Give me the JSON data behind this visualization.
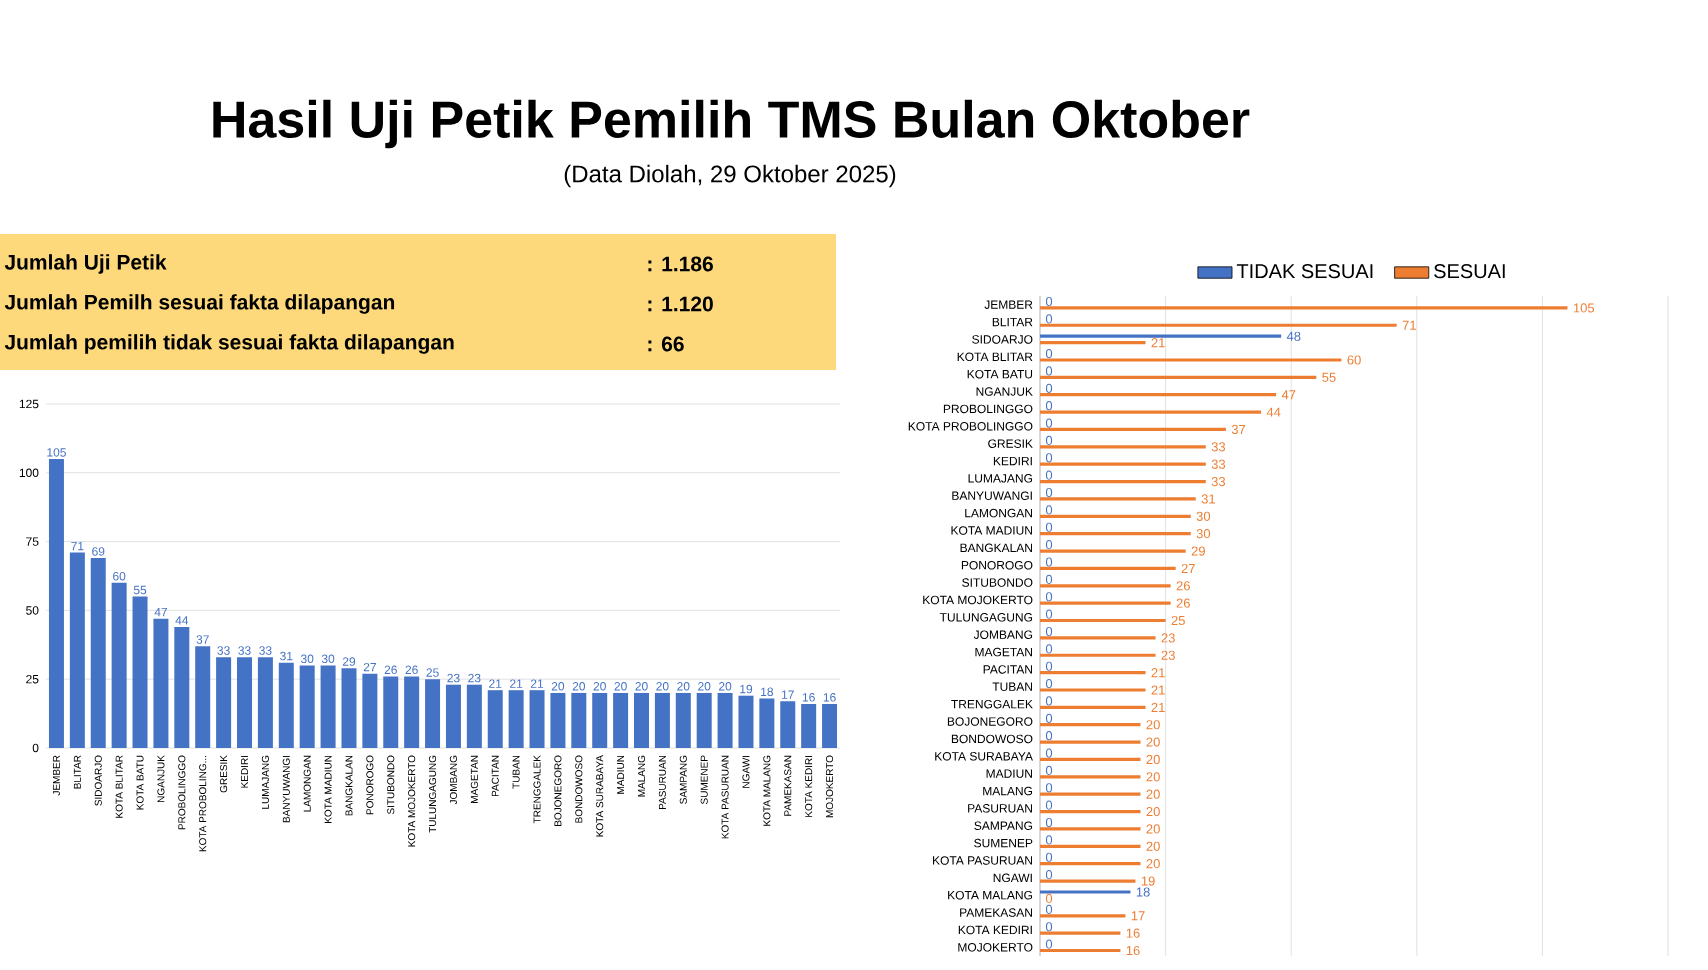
{
  "chart_data": [
    {
      "type": "other",
      "title": "Hasil Uji Petik Pemilih TMS Bulan Oktober",
      "subtitle": "(Data Diolah, 29 Oktober 2025)",
      "annotations": [
        "Jumlah Uji Petik",
        ": 1.186",
        "Jumlah Pemilh sesuai fakta dilapangan",
        ": 1.120",
        "Jumlah pemilih tidak sesuai fakta dilapangan",
        ": 66"
      ]
    },
    {
      "type": "bar",
      "categories": [
        "JEMBER",
        "BLITAR",
        "SIDOARJO",
        "KOTA BLITAR",
        "KOTA BATU",
        "NGANJUK",
        "PROBOLINGGO",
        "KOTA PROBOLING...",
        "GRESIK",
        "KEDIRI",
        "LUMAJANG",
        "BANYUWANGI",
        "LAMONGAN",
        "KOTA MADIUN",
        "BANGKALAN",
        "PONOROGO",
        "SITUBONDO",
        "KOTA MOJOKERTO",
        "TULUNGAGUNG",
        "JOMBANG",
        "MAGETAN",
        "PACITAN",
        "TUBAN",
        "TRENGGALEK",
        "BOJONEGORO",
        "BONDOWOSO",
        "KOTA SURABAYA",
        "MADIUN",
        "MALANG",
        "PASURUAN",
        "SAMPANG",
        "SUMENEP",
        "KOTA PASURUAN",
        "NGAWI",
        "KOTA MALANG",
        "PAMEKASAN",
        "KOTA KEDIRI",
        "MOJOKERTO"
      ],
      "values": [
        105,
        71,
        69,
        60,
        55,
        47,
        44,
        37,
        33,
        33,
        33,
        31,
        30,
        30,
        29,
        27,
        26,
        26,
        25,
        23,
        23,
        21,
        21,
        21,
        20,
        20,
        20,
        20,
        20,
        20,
        20,
        20,
        20,
        19,
        18,
        17,
        16,
        16
      ],
      "color": "#4472c4",
      "ylim": [
        0,
        125
      ],
      "yticks": [
        0,
        25,
        50,
        75,
        100,
        125
      ],
      "grid": "y",
      "data_labels": true
    },
    {
      "type": "bar",
      "orientation": "horizontal",
      "categories": [
        "JEMBER",
        "BLITAR",
        "SIDOARJO",
        "KOTA BLITAR",
        "KOTA BATU",
        "NGANJUK",
        "PROBOLINGGO",
        "KOTA PROBOLINGGO",
        "GRESIK",
        "KEDIRI",
        "LUMAJANG",
        "BANYUWANGI",
        "LAMONGAN",
        "KOTA MADIUN",
        "BANGKALAN",
        "PONOROGO",
        "SITUBONDO",
        "KOTA MOJOKERTO",
        "TULUNGAGUNG",
        "JOMBANG",
        "MAGETAN",
        "PACITAN",
        "TUBAN",
        "TRENGGALEK",
        "BOJONEGORO",
        "BONDOWOSO",
        "KOTA SURABAYA",
        "MADIUN",
        "MALANG",
        "PASURUAN",
        "SAMPANG",
        "SUMENEP",
        "KOTA PASURUAN",
        "NGAWI",
        "KOTA MALANG",
        "PAMEKASAN",
        "KOTA KEDIRI",
        "MOJOKERTO"
      ],
      "series": [
        {
          "name": "TIDAK SESUAI",
          "color": "#4472c4",
          "values": [
            0,
            0,
            48,
            0,
            0,
            0,
            0,
            0,
            0,
            0,
            0,
            0,
            0,
            0,
            0,
            0,
            0,
            0,
            0,
            0,
            0,
            0,
            0,
            0,
            0,
            0,
            0,
            0,
            0,
            0,
            0,
            0,
            0,
            0,
            18,
            0,
            0,
            0
          ]
        },
        {
          "name": "SESUAI",
          "color": "#ed7d31",
          "values": [
            105,
            71,
            21,
            60,
            55,
            47,
            44,
            37,
            33,
            33,
            33,
            31,
            30,
            30,
            29,
            27,
            26,
            26,
            25,
            23,
            23,
            21,
            21,
            21,
            20,
            20,
            20,
            20,
            20,
            20,
            20,
            20,
            20,
            19,
            0,
            17,
            16,
            16
          ]
        }
      ],
      "xlim": [
        0,
        125
      ],
      "xticks": [
        {
          "value": 0,
          "label": null
        },
        {
          "value": 25,
          "label": null
        },
        {
          "value": 50,
          "label": null
        },
        {
          "value": 75,
          "label": null
        },
        {
          "value": 100,
          "label": null
        },
        {
          "value": 125,
          "label": null
        }
      ],
      "grid": "x",
      "legend": "top",
      "tick_labels": "y",
      "data_labels": true
    }
  ]
}
